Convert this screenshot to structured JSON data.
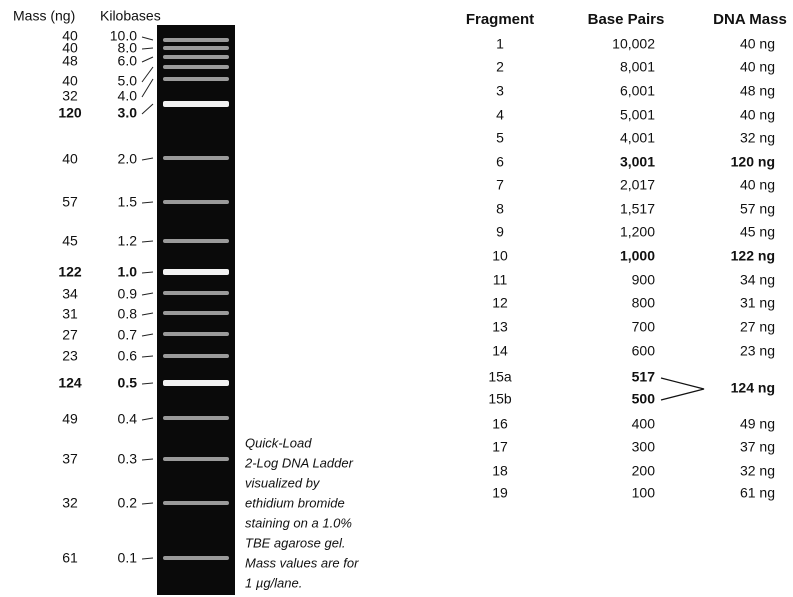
{
  "gel": {
    "headers": [
      "Mass (ng)",
      "Kilobases"
    ],
    "rows": [
      {
        "mass": "40",
        "kb": "10.0"
      },
      {
        "mass": "40",
        "kb": "8.0"
      },
      {
        "mass": "48",
        "kb": "6.0"
      },
      {
        "mass": "40",
        "kb": "5.0"
      },
      {
        "mass": "32",
        "kb": "4.0"
      },
      {
        "mass": "120",
        "kb": "3.0",
        "bold": true
      },
      {
        "mass": "40",
        "kb": "2.0"
      },
      {
        "mass": "57",
        "kb": "1.5"
      },
      {
        "mass": "45",
        "kb": "1.2"
      },
      {
        "mass": "122",
        "kb": "1.0",
        "bold": true
      },
      {
        "mass": "34",
        "kb": "0.9"
      },
      {
        "mass": "31",
        "kb": "0.8"
      },
      {
        "mass": "27",
        "kb": "0.7"
      },
      {
        "mass": "23",
        "kb": "0.6"
      },
      {
        "mass": "124",
        "kb": "0.5",
        "bold": true
      },
      {
        "mass": "49",
        "kb": "0.4"
      },
      {
        "mass": "37",
        "kb": "0.3"
      },
      {
        "mass": "32",
        "kb": "0.2"
      },
      {
        "mass": "61",
        "kb": "0.1"
      }
    ],
    "caption": [
      "Quick-Load",
      "2-Log DNA Ladder",
      "visualized by",
      "ethidium bromide",
      "staining on a 1.0%",
      "TBE agarose gel.",
      "Mass values are for",
      "1 µg/lane."
    ]
  },
  "table": {
    "headers": [
      "Fragment",
      "Base Pairs",
      "DNA Mass"
    ],
    "rows": [
      {
        "cells": [
          "1",
          "10,002",
          "40 ng"
        ]
      },
      {
        "cells": [
          "2",
          "8,001",
          "40 ng"
        ]
      },
      {
        "cells": [
          "3",
          "6,001",
          "48 ng"
        ]
      },
      {
        "cells": [
          "4",
          "5,001",
          "40 ng"
        ]
      },
      {
        "cells": [
          "5",
          "4,001",
          "32 ng"
        ]
      },
      {
        "cells": [
          "6",
          "3,001",
          "120 ng"
        ],
        "bold": true
      },
      {
        "cells": [
          "7",
          "2,017",
          "40 ng"
        ]
      },
      {
        "cells": [
          "8",
          "1,517",
          "57 ng"
        ]
      },
      {
        "cells": [
          "9",
          "1,200",
          "45 ng"
        ]
      },
      {
        "cells": [
          "10",
          "1,000",
          "122 ng"
        ],
        "bold": true
      },
      {
        "cells": [
          "11",
          "900",
          "34 ng"
        ]
      },
      {
        "cells": [
          "12",
          "800",
          "31 ng"
        ]
      },
      {
        "cells": [
          "13",
          "700",
          "27 ng"
        ]
      },
      {
        "cells": [
          "14",
          "600",
          "23 ng"
        ]
      },
      {
        "cells": [
          "15a",
          "517",
          "124 ng"
        ],
        "bold": true
      },
      {
        "cells": [
          "15b",
          "500"
        ],
        "bold": true
      },
      {
        "cells": [
          "16",
          "400",
          "49 ng"
        ]
      },
      {
        "cells": [
          "17",
          "300",
          "37 ng"
        ]
      },
      {
        "cells": [
          "18",
          "200",
          "32 ng"
        ]
      },
      {
        "cells": [
          "19",
          "100",
          "61 ng"
        ]
      }
    ]
  }
}
